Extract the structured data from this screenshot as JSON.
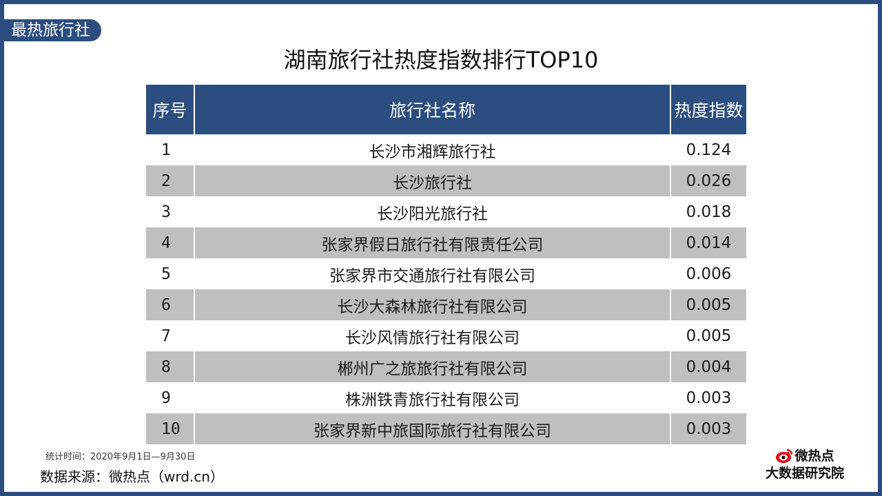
{
  "section_label": "最热旅行社",
  "title": "湖南旅行社热度指数排行TOP10",
  "table": {
    "headers": [
      "序号",
      "旅行社名称",
      "热度指数"
    ],
    "rows": [
      {
        "rank": "1",
        "name": "长沙市湘辉旅行社",
        "index": "0.124"
      },
      {
        "rank": "2",
        "name": "长沙旅行社",
        "index": "0.026"
      },
      {
        "rank": "3",
        "name": "长沙阳光旅行社",
        "index": "0.018"
      },
      {
        "rank": "4",
        "name": "张家界假日旅行社有限责任公司",
        "index": "0.014"
      },
      {
        "rank": "5",
        "name": "张家界市交通旅行社有限公司",
        "index": "0.006"
      },
      {
        "rank": "6",
        "name": "长沙大森林旅行社有限公司",
        "index": "0.005"
      },
      {
        "rank": "7",
        "name": "长沙风情旅行社有限公司",
        "index": "0.005"
      },
      {
        "rank": "8",
        "name": "郴州广之旅旅行社有限公司",
        "index": "0.004"
      },
      {
        "rank": "9",
        "name": "株洲铁青旅行社有限公司",
        "index": "0.003"
      },
      {
        "rank": "10",
        "name": "张家界新中旅国际旅行社有限公司",
        "index": "0.003"
      }
    ]
  },
  "note": "统计时间：2020年9月1日—9月30日",
  "source": "数据来源：微热点（wrd.cn）",
  "brand": {
    "name": "微热点",
    "subtitle": "大数据研究院",
    "icon": "weibo-eye-icon",
    "accent_color": "#e60012"
  },
  "colors": {
    "frame": "#2b4d7f",
    "stripe": "#bfbfbf"
  }
}
